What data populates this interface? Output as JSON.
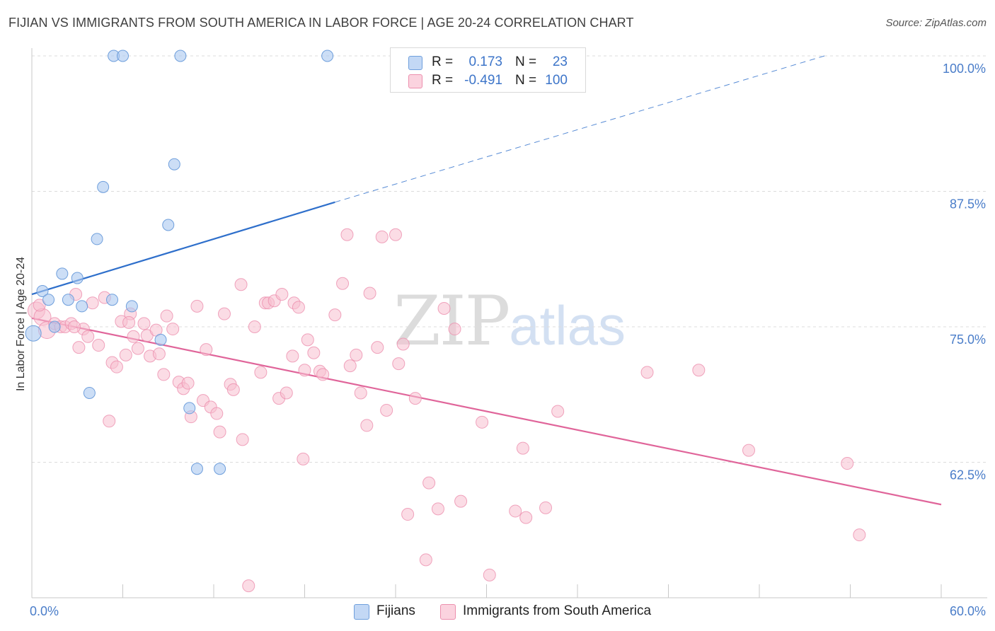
{
  "title": "FIJIAN VS IMMIGRANTS FROM SOUTH AMERICA IN LABOR FORCE | AGE 20-24 CORRELATION CHART",
  "source": "Source: ZipAtlas.com",
  "watermark": {
    "zip": "ZIP",
    "atlas": "atlas"
  },
  "legend_top": [
    {
      "r_label": "R =",
      "r_value": "0.173",
      "n_label": "N =",
      "n_value": "23"
    },
    {
      "r_label": "R =",
      "r_value": "-0.491",
      "n_label": "N =",
      "n_value": "100"
    }
  ],
  "legend_bottom": [
    "Fijians",
    "Immigrants from South America"
  ],
  "colors": {
    "fijian_fill": "#aac8f0",
    "fijian_stroke": "#6f9fdc",
    "fijian_line": "#2e6fcb",
    "immig_fill": "#f7bfd0",
    "immig_stroke": "#ec8fae",
    "immig_line": "#e0659a",
    "grid": "#dcdcdc",
    "tick_text": "#4a7dc9"
  },
  "chart_data": {
    "type": "scatter",
    "title": "FIJIAN VS IMMIGRANTS FROM SOUTH AMERICA IN LABOR FORCE | AGE 20-24 CORRELATION CHART",
    "xlabel": "",
    "ylabel": "In Labor Force | Age 20-24",
    "xlim": [
      0,
      60
    ],
    "ylim": [
      51,
      101.2
    ],
    "x_tick_labels": [
      "0.0%",
      "60.0%"
    ],
    "y_ticks": [
      62.5,
      75.0,
      87.5,
      100.0
    ],
    "y_tick_labels": [
      "62.5%",
      "75.0%",
      "87.5%",
      "100.0%"
    ],
    "grid": "horizontal dashed",
    "legend_position": "top-center",
    "series": [
      {
        "name": "Fijians",
        "r": 0.173,
        "n": 23,
        "trend": {
          "x0": 0,
          "y0": 78.0,
          "x1": 20,
          "y1": 86.5,
          "dashed_to_x": 52.3,
          "dashed_to_y": 100.0
        },
        "points": [
          [
            0.1,
            74.4
          ],
          [
            0.7,
            78.3
          ],
          [
            1.1,
            77.5
          ],
          [
            1.5,
            75.0
          ],
          [
            2.0,
            79.9
          ],
          [
            2.4,
            77.5
          ],
          [
            3.0,
            79.5
          ],
          [
            3.3,
            76.9
          ],
          [
            3.8,
            68.9
          ],
          [
            4.3,
            83.1
          ],
          [
            4.7,
            87.9
          ],
          [
            5.3,
            77.5
          ],
          [
            5.4,
            100.0
          ],
          [
            6.0,
            100.0
          ],
          [
            6.6,
            76.9
          ],
          [
            8.5,
            73.8
          ],
          [
            9.0,
            84.4
          ],
          [
            9.4,
            90.0
          ],
          [
            9.8,
            100.0
          ],
          [
            10.4,
            67.5
          ],
          [
            10.9,
            61.9
          ],
          [
            12.4,
            61.9
          ],
          [
            19.5,
            100.0
          ]
        ]
      },
      {
        "name": "Immigrants from South America",
        "r": -0.491,
        "n": 100,
        "trend": {
          "x0": 0,
          "y0": 75.8,
          "x1": 60,
          "y1": 58.6
        },
        "points": [
          [
            0.3,
            76.5
          ],
          [
            0.7,
            75.9
          ],
          [
            1.0,
            74.7
          ],
          [
            1.5,
            75.3
          ],
          [
            1.9,
            75.0
          ],
          [
            2.2,
            75.0
          ],
          [
            2.6,
            75.3
          ],
          [
            2.9,
            78.0
          ],
          [
            3.1,
            73.1
          ],
          [
            3.4,
            74.8
          ],
          [
            3.7,
            74.1
          ],
          [
            4.0,
            77.2
          ],
          [
            4.4,
            73.3
          ],
          [
            4.8,
            77.7
          ],
          [
            5.1,
            66.3
          ],
          [
            5.3,
            71.7
          ],
          [
            5.6,
            71.3
          ],
          [
            5.9,
            75.5
          ],
          [
            6.2,
            72.4
          ],
          [
            6.5,
            76.2
          ],
          [
            6.7,
            74.1
          ],
          [
            7.0,
            73.0
          ],
          [
            7.4,
            75.3
          ],
          [
            7.6,
            74.2
          ],
          [
            7.8,
            72.3
          ],
          [
            8.2,
            74.7
          ],
          [
            8.4,
            72.5
          ],
          [
            8.7,
            70.6
          ],
          [
            8.9,
            76.0
          ],
          [
            9.3,
            74.8
          ],
          [
            9.7,
            69.9
          ],
          [
            10.0,
            69.3
          ],
          [
            10.3,
            69.8
          ],
          [
            10.5,
            66.7
          ],
          [
            10.9,
            76.9
          ],
          [
            11.3,
            68.2
          ],
          [
            11.5,
            72.9
          ],
          [
            11.8,
            67.6
          ],
          [
            12.2,
            67.0
          ],
          [
            12.4,
            65.3
          ],
          [
            12.7,
            76.2
          ],
          [
            13.1,
            69.7
          ],
          [
            13.3,
            69.2
          ],
          [
            13.8,
            78.9
          ],
          [
            13.9,
            64.6
          ],
          [
            14.3,
            51.1
          ],
          [
            14.7,
            75.0
          ],
          [
            15.1,
            70.8
          ],
          [
            15.4,
            77.2
          ],
          [
            15.6,
            77.2
          ],
          [
            16.0,
            77.4
          ],
          [
            16.3,
            68.4
          ],
          [
            16.5,
            78.0
          ],
          [
            16.8,
            68.9
          ],
          [
            17.2,
            72.3
          ],
          [
            17.3,
            77.2
          ],
          [
            17.6,
            76.8
          ],
          [
            17.9,
            62.8
          ],
          [
            18.0,
            71.0
          ],
          [
            18.2,
            73.8
          ],
          [
            18.6,
            72.6
          ],
          [
            19.0,
            70.9
          ],
          [
            19.2,
            70.6
          ],
          [
            20.0,
            76.1
          ],
          [
            20.5,
            79.0
          ],
          [
            20.8,
            83.5
          ],
          [
            21.0,
            71.4
          ],
          [
            21.4,
            72.4
          ],
          [
            21.7,
            68.9
          ],
          [
            22.1,
            65.9
          ],
          [
            22.3,
            78.1
          ],
          [
            22.8,
            73.1
          ],
          [
            23.1,
            83.3
          ],
          [
            23.4,
            67.3
          ],
          [
            24.0,
            83.5
          ],
          [
            24.2,
            71.6
          ],
          [
            24.5,
            73.4
          ],
          [
            24.8,
            57.7
          ],
          [
            25.3,
            68.4
          ],
          [
            26.0,
            53.5
          ],
          [
            26.2,
            60.6
          ],
          [
            26.8,
            58.2
          ],
          [
            27.2,
            76.7
          ],
          [
            27.9,
            74.8
          ],
          [
            28.3,
            58.9
          ],
          [
            29.7,
            66.2
          ],
          [
            30.2,
            52.1
          ],
          [
            31.9,
            58.0
          ],
          [
            32.4,
            63.8
          ],
          [
            32.6,
            57.4
          ],
          [
            33.9,
            58.3
          ],
          [
            34.7,
            67.2
          ],
          [
            40.6,
            70.8
          ],
          [
            44.0,
            71.0
          ],
          [
            47.3,
            63.6
          ],
          [
            53.8,
            62.4
          ],
          [
            54.6,
            55.8
          ],
          [
            0.5,
            77.0
          ],
          [
            2.8,
            75.0
          ],
          [
            6.4,
            75.4
          ]
        ]
      }
    ]
  }
}
